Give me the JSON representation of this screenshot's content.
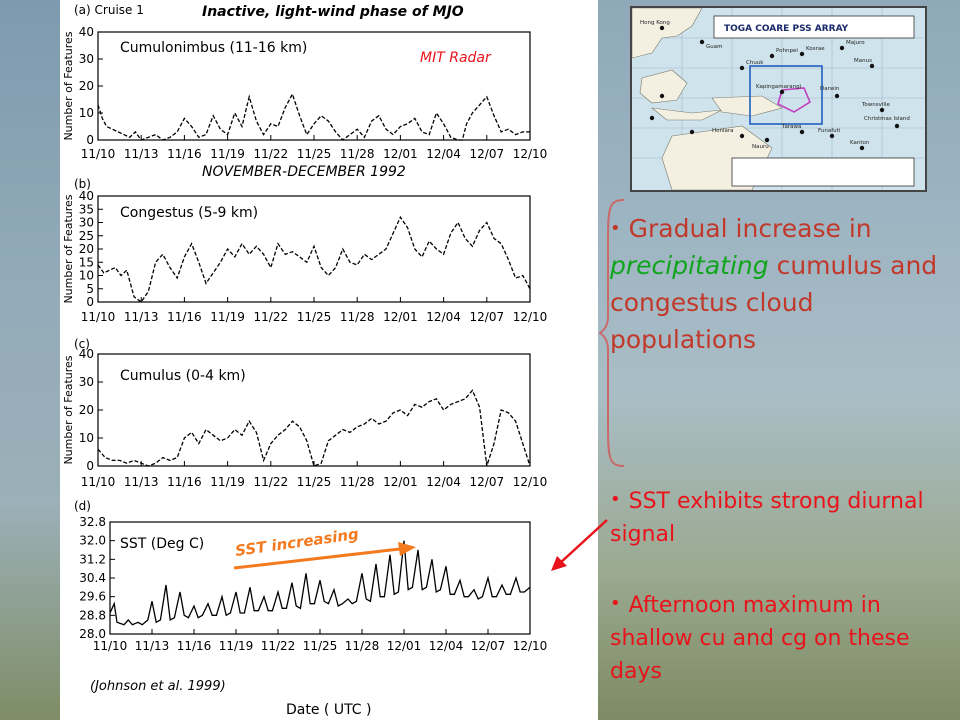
{
  "header": {
    "title": "Inactive, light-wind phase of MJO",
    "radar_label": "MIT Radar",
    "period_label": "NOVEMBER-DECEMBER 1992",
    "cruise_label": "(a) Cruise 1"
  },
  "bullets": {
    "b1_pre": "Gradual increase in ",
    "b1_green": "precipitating",
    "b1_post": " cumulus and congestus cloud populations",
    "b2": "SST exhibits strong diurnal signal",
    "b3": "Afternoon maximum in shallow cu and cg on these days"
  },
  "figure": {
    "citation": "(Johnson et al. 1999)",
    "xaxis_title": "Date ( UTC )",
    "sst_arrow_label": "SST increasing"
  },
  "map": {
    "title": "TOGA COARE PSS ARRAY",
    "regions": [
      "Hong Kong",
      "Guam",
      "Chuuk",
      "Pohnpei",
      "Kosrae",
      "Majuro",
      "Manus",
      "Kapingamarangi",
      "Darwin",
      "Townsville",
      "Honiara",
      "Nauru",
      "Tarawa",
      "Funafuti",
      "Kanton",
      "Christmas Island"
    ],
    "colors": {
      "sea": "#cfe3ec",
      "land": "#f3f0e2",
      "box": "#1f5fbf",
      "ifa": "#c040c0"
    }
  },
  "colors": {
    "red_text": "#e8131b",
    "brown_text": "#c0392b",
    "green_text": "#10a51c",
    "orange_arrow": "#f47a20",
    "bracket": "#c96a6a"
  },
  "chart_data": [
    {
      "type": "line",
      "panel": "(a)",
      "title": "Cumulonimbus (11-16 km)",
      "ylabel": "Number of Features",
      "xlabel": "",
      "ylim": [
        0,
        40
      ],
      "yticks": [
        0,
        10,
        20,
        30,
        40
      ],
      "xticks": [
        "11/10",
        "11/13",
        "11/16",
        "11/19",
        "11/22",
        "11/25",
        "11/28",
        "12/01",
        "12/04",
        "12/07",
        "12/10"
      ],
      "x_days": [
        0,
        0.3,
        0.6,
        1.0,
        1.4,
        1.8,
        2.2,
        2.6,
        3.0,
        3.5,
        4.0,
        4.5,
        5.0,
        5.5,
        6.0,
        6.5,
        7.0,
        7.5,
        8.0,
        8.5,
        9.0,
        9.5,
        10.0,
        10.5,
        11.0,
        11.5,
        12.0,
        12.5,
        13.0,
        13.5,
        14.0,
        14.5,
        15.0,
        15.5,
        16.0,
        16.5,
        17.0,
        17.5,
        18.0,
        18.5,
        19.0,
        19.5,
        20.0,
        20.5,
        21.0,
        21.5,
        22.0,
        22.5,
        23.0,
        23.5,
        24.0,
        24.5,
        25.0,
        25.3,
        25.6,
        26.0,
        26.5,
        27.0,
        27.5,
        28.0,
        28.5,
        29.0,
        29.5,
        30.0
      ],
      "series": [
        {
          "values": [
            13,
            8,
            5,
            4,
            3,
            2,
            1,
            3,
            0,
            1,
            2,
            0,
            1,
            3,
            8,
            5,
            1,
            2,
            9,
            4,
            2,
            10,
            5,
            16,
            7,
            2,
            6,
            5,
            12,
            17,
            9,
            2,
            6,
            9,
            7,
            3,
            0,
            2,
            4,
            1,
            7,
            9,
            4,
            2,
            5,
            6,
            8,
            3,
            2,
            10,
            6,
            1,
            0,
            0,
            6,
            10,
            13,
            16,
            9,
            3,
            4,
            2,
            3,
            3
          ]
        }
      ]
    },
    {
      "type": "line",
      "panel": "(b)",
      "title": "Congestus (5-9 km)",
      "ylabel": "Number of Features",
      "xlabel": "",
      "ylim": [
        0,
        40
      ],
      "yticks": [
        0,
        5,
        10,
        15,
        20,
        25,
        30,
        35,
        40
      ],
      "xticks": [
        "11/10",
        "11/13",
        "11/16",
        "11/19",
        "11/22",
        "11/25",
        "11/28",
        "12/01",
        "12/04",
        "12/07",
        "12/10"
      ],
      "x_days": [
        0,
        0.4,
        0.8,
        1.2,
        1.6,
        2.0,
        2.5,
        3.0,
        3.5,
        4.0,
        4.5,
        5.0,
        5.5,
        6.0,
        6.5,
        7.0,
        7.5,
        8.0,
        8.5,
        9.0,
        9.5,
        10.0,
        10.5,
        11.0,
        11.5,
        12.0,
        12.5,
        13.0,
        13.5,
        14.0,
        14.5,
        15.0,
        15.5,
        16.0,
        16.5,
        17.0,
        17.5,
        18.0,
        18.5,
        19.0,
        19.5,
        20.0,
        20.5,
        21.0,
        21.5,
        22.0,
        22.5,
        23.0,
        23.5,
        24.0,
        24.5,
        25.0,
        25.5,
        26.0,
        26.5,
        27.0,
        27.5,
        28.0,
        28.5,
        29.0,
        29.5,
        30.0
      ],
      "series": [
        {
          "values": [
            14,
            11,
            12,
            13,
            10,
            12,
            2,
            0,
            4,
            15,
            18,
            13,
            9,
            17,
            22,
            15,
            7,
            11,
            15,
            20,
            17,
            22,
            18,
            21,
            18,
            13,
            22,
            18,
            19,
            17,
            15,
            21,
            13,
            10,
            13,
            20,
            15,
            14,
            18,
            16,
            18,
            20,
            26,
            32,
            28,
            20,
            17,
            23,
            20,
            18,
            26,
            30,
            24,
            21,
            27,
            30,
            24,
            22,
            16,
            9,
            10,
            5
          ]
        }
      ]
    },
    {
      "type": "line",
      "panel": "(c)",
      "title": "Cumulus (0-4 km)",
      "ylabel": "Number of Features",
      "xlabel": "",
      "ylim": [
        0,
        40
      ],
      "yticks": [
        0,
        10,
        20,
        30,
        40
      ],
      "xticks": [
        "11/10",
        "11/13",
        "11/16",
        "11/19",
        "11/22",
        "11/25",
        "11/28",
        "12/01",
        "12/04",
        "12/07",
        "12/10"
      ],
      "x_days": [
        0,
        0.5,
        1.0,
        1.5,
        2.0,
        2.5,
        3.0,
        3.5,
        4.0,
        4.5,
        5.0,
        5.5,
        6.0,
        6.5,
        7.0,
        7.5,
        8.0,
        8.5,
        9.0,
        9.5,
        10.0,
        10.5,
        11.0,
        11.5,
        12.0,
        12.5,
        13.0,
        13.5,
        14.0,
        14.5,
        15.0,
        15.5,
        16.0,
        16.5,
        17.0,
        17.5,
        18.0,
        18.5,
        19.0,
        19.5,
        20.0,
        20.5,
        21.0,
        21.5,
        22.0,
        22.5,
        23.0,
        23.5,
        24.0,
        24.5,
        25.0,
        25.5,
        26.0,
        26.5,
        27.0,
        27.5,
        28.0,
        28.5,
        29.0,
        29.5,
        30.0
      ],
      "series": [
        {
          "values": [
            6,
            3,
            2,
            2,
            1,
            2,
            1,
            0,
            1,
            3,
            2,
            3,
            10,
            12,
            8,
            13,
            11,
            9,
            10,
            13,
            11,
            16,
            12,
            2,
            8,
            11,
            13,
            16,
            14,
            9,
            0,
            1,
            9,
            11,
            13,
            12,
            14,
            15,
            17,
            15,
            16,
            19,
            20,
            18,
            22,
            21,
            23,
            24,
            20,
            22,
            23,
            24,
            27,
            21,
            0,
            8,
            20,
            19,
            16,
            8,
            0
          ]
        }
      ]
    },
    {
      "type": "line",
      "panel": "(d)",
      "title": "SST (Deg C)",
      "ylabel": "",
      "xlabel": "Date ( UTC )",
      "ylim": [
        28.0,
        32.8
      ],
      "yticks": [
        28.0,
        28.8,
        29.6,
        30.4,
        31.2,
        32.0,
        32.8
      ],
      "xticks": [
        "11/10",
        "11/13",
        "11/16",
        "11/19",
        "11/22",
        "11/25",
        "11/28",
        "12/01",
        "12/04",
        "12/07",
        "12/10"
      ],
      "x_days": [
        0,
        0.3,
        0.5,
        1.0,
        1.3,
        1.6,
        2.0,
        2.3,
        2.7,
        3.0,
        3.3,
        3.6,
        4.0,
        4.3,
        4.6,
        5.0,
        5.3,
        5.6,
        6.0,
        6.3,
        6.6,
        7.0,
        7.3,
        7.6,
        8.0,
        8.3,
        8.6,
        9.0,
        9.3,
        9.6,
        10.0,
        10.3,
        10.6,
        11.0,
        11.3,
        11.6,
        12.0,
        12.3,
        12.6,
        13.0,
        13.3,
        13.6,
        14.0,
        14.3,
        14.6,
        15.0,
        15.3,
        15.6,
        16.0,
        16.3,
        16.6,
        17.0,
        17.3,
        17.6,
        18.0,
        18.3,
        18.6,
        19.0,
        19.3,
        19.6,
        20.0,
        20.3,
        20.6,
        21.0,
        21.3,
        21.6,
        22.0,
        22.3,
        22.6,
        23.0,
        23.3,
        23.6,
        24.0,
        24.3,
        24.6,
        25.0,
        25.3,
        25.6,
        26.0,
        26.3,
        26.6,
        27.0,
        27.3,
        27.6,
        28.0,
        28.3,
        28.6,
        29.0,
        29.3,
        29.6,
        30.0
      ],
      "series": [
        {
          "values": [
            28.9,
            29.3,
            28.5,
            28.4,
            28.6,
            28.4,
            28.5,
            28.4,
            28.6,
            29.4,
            28.5,
            28.6,
            30.1,
            28.6,
            28.7,
            29.8,
            28.8,
            28.7,
            29.2,
            28.7,
            28.8,
            29.3,
            28.8,
            28.8,
            29.6,
            28.8,
            28.9,
            29.8,
            28.9,
            28.9,
            30.0,
            29.0,
            29.0,
            29.6,
            29.0,
            29.0,
            29.8,
            29.1,
            29.1,
            30.2,
            29.2,
            29.1,
            30.6,
            29.3,
            29.3,
            30.3,
            29.4,
            29.3,
            29.9,
            29.2,
            29.3,
            29.5,
            29.3,
            29.4,
            30.6,
            29.5,
            29.4,
            31.0,
            29.6,
            29.6,
            31.4,
            29.7,
            29.8,
            32.0,
            29.9,
            30.0,
            31.6,
            29.9,
            30.0,
            31.2,
            29.8,
            29.9,
            30.9,
            29.7,
            29.7,
            30.3,
            29.6,
            29.6,
            29.9,
            29.5,
            29.6,
            30.4,
            29.6,
            29.6,
            30.1,
            29.7,
            29.7,
            30.4,
            29.8,
            29.8,
            30.0
          ]
        }
      ]
    }
  ]
}
